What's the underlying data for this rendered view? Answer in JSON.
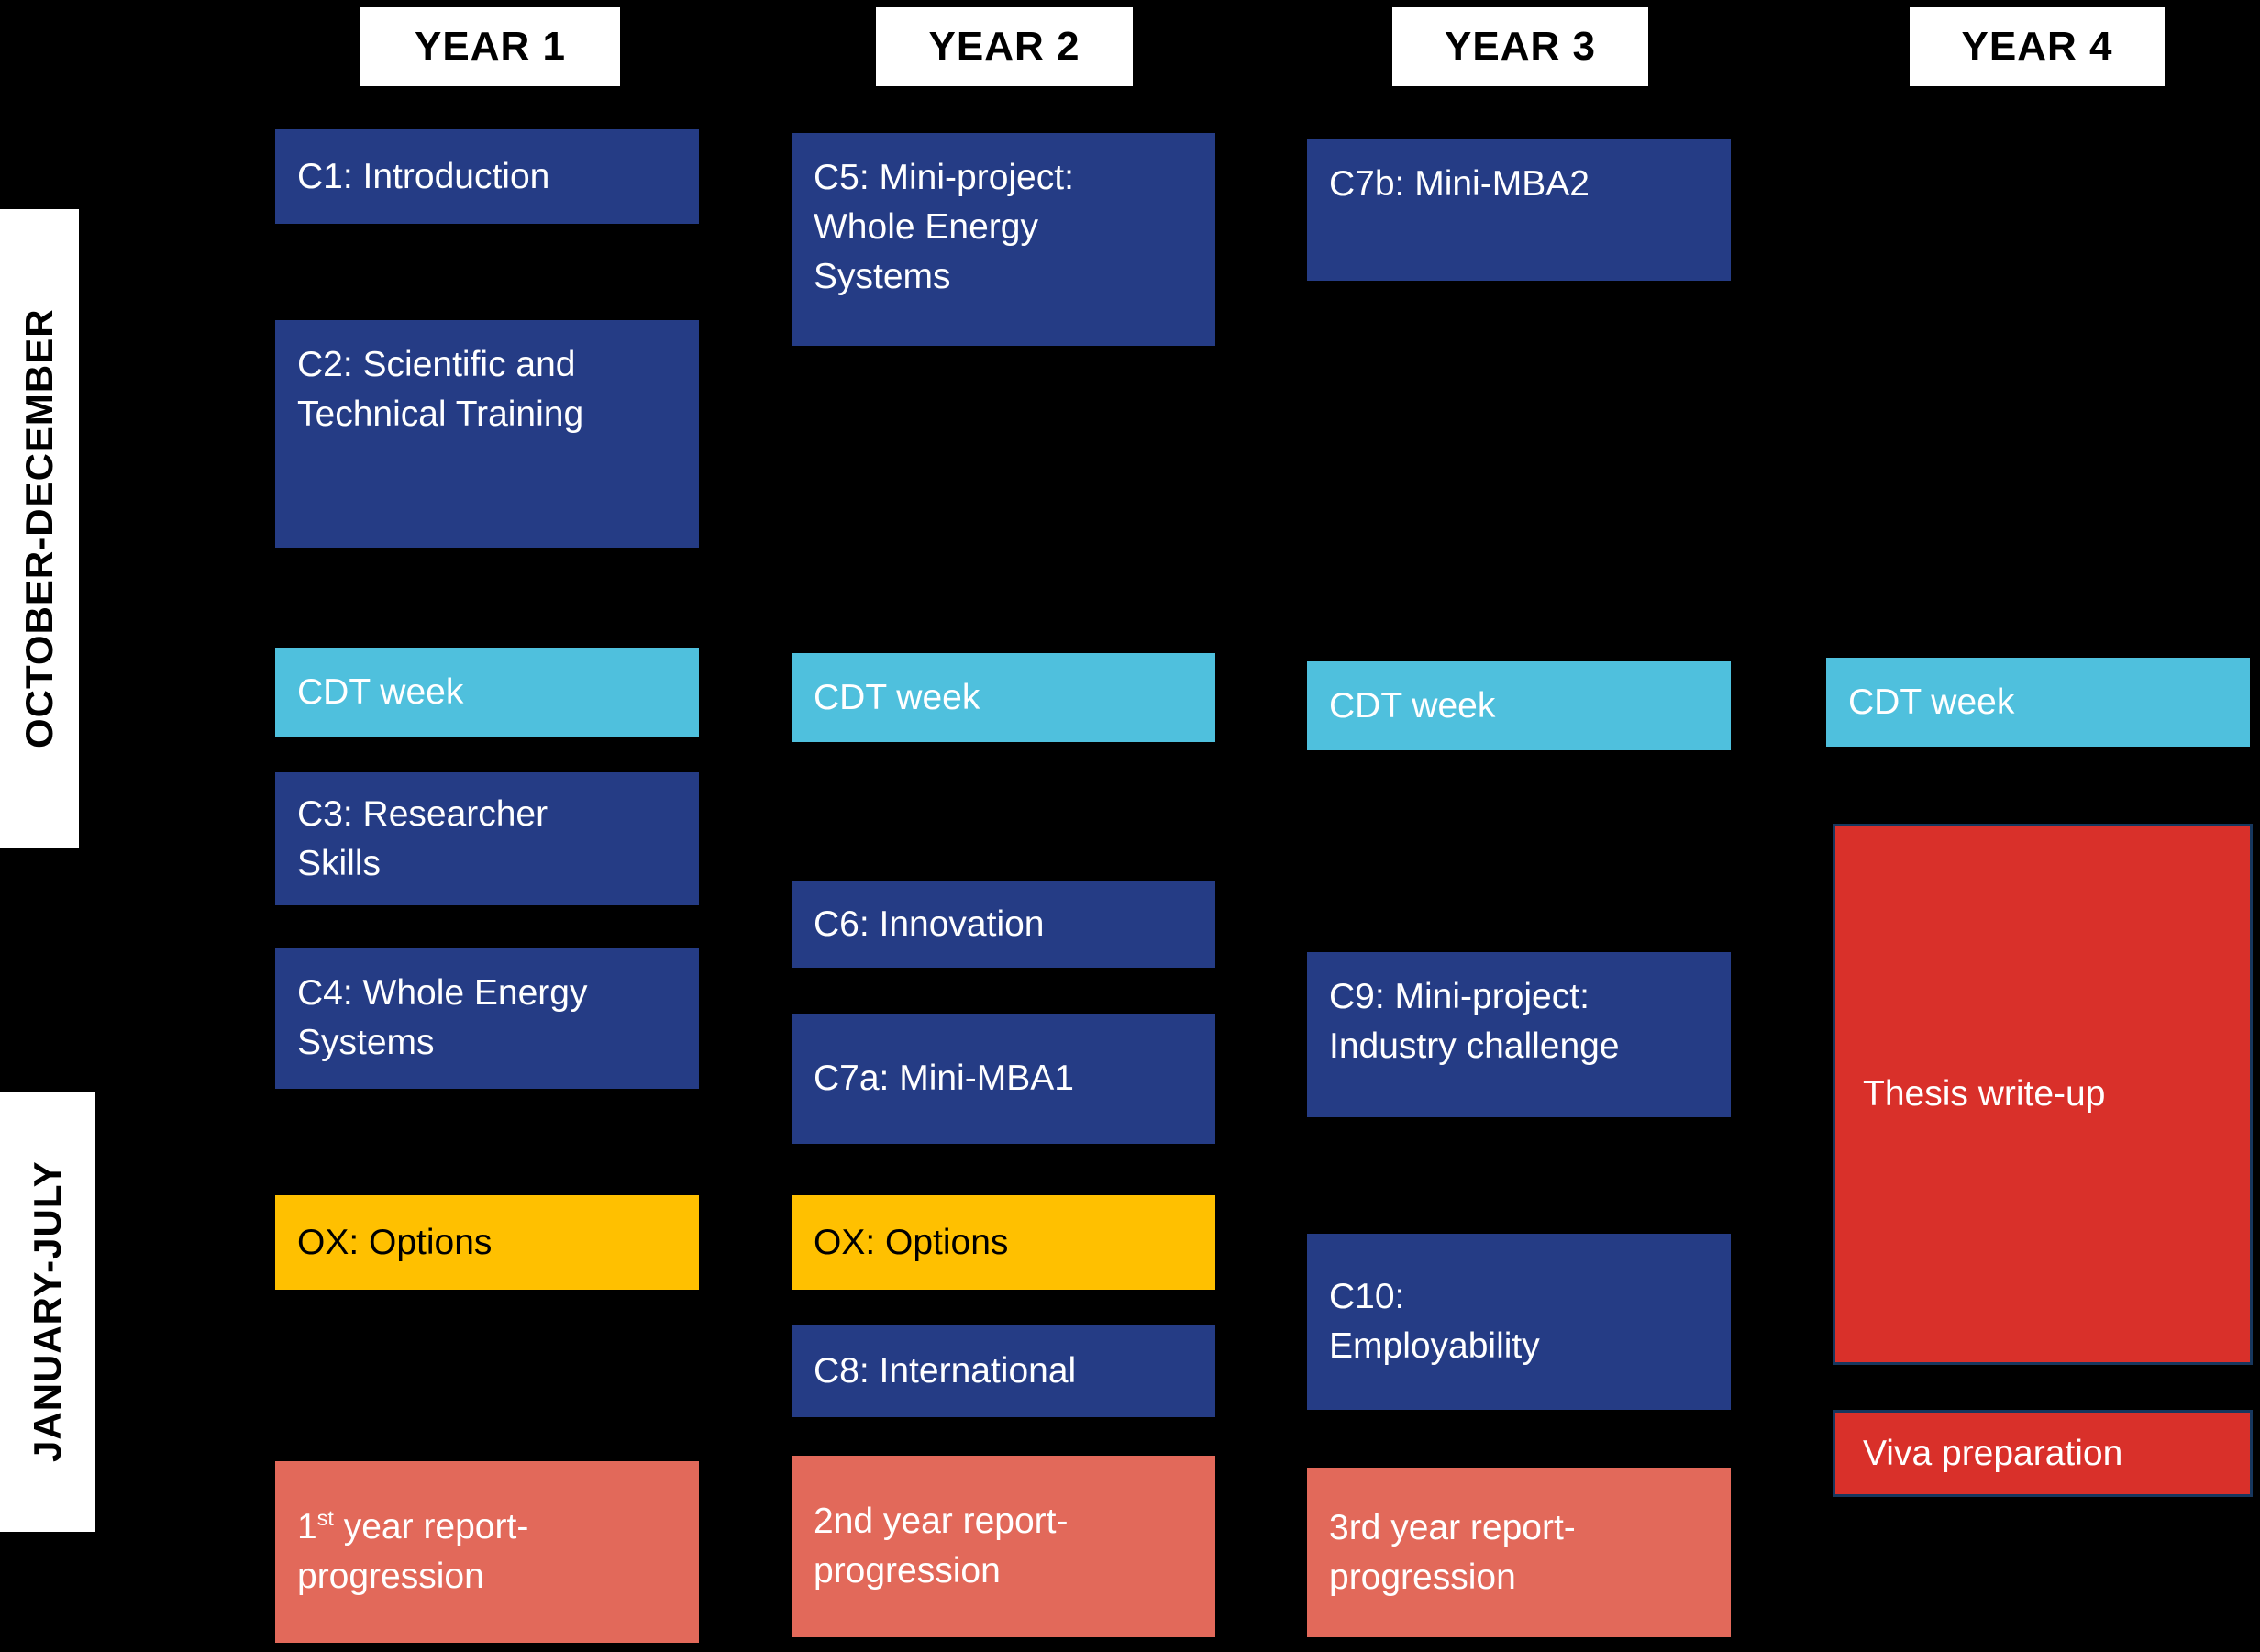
{
  "headers": {
    "year1": "YEAR 1",
    "year2": "YEAR 2",
    "year3": "YEAR 3",
    "year4": "YEAR 4"
  },
  "sidebar": {
    "oct_dec": "OCTOBER-DECEMBER",
    "jan_jul": "JANUARY-JULY"
  },
  "columns": {
    "year1": {
      "c1": "C1: Introduction",
      "c2_line1": "C2: Scientific and",
      "c2_line2": "Technical Training",
      "cdt": "CDT week",
      "c3_line1": "C3: Researcher",
      "c3_line2": "Skills",
      "c4_line1": "C4: Whole Energy",
      "c4_line2": "Systems",
      "ox": "OX: Options",
      "report": {
        "num": "1",
        "sup": "st",
        "rest": " year report-",
        "line2": "progression"
      }
    },
    "year2": {
      "c5_line1": "C5: Mini-project:",
      "c5_line2": "Whole Energy",
      "c5_line3": "Systems",
      "cdt": "CDT week",
      "c6": "C6: Innovation",
      "c7a": "C7a: Mini-MBA1",
      "ox": "OX: Options",
      "c8": "C8: International",
      "report": {
        "line1": "2nd year report-",
        "line2": "progression"
      }
    },
    "year3": {
      "c7b": "C7b: Mini-MBA2",
      "cdt": "CDT week",
      "c9_line1": "C9: Mini-project:",
      "c9_line2": "Industry challenge",
      "c10_line1": "C10:",
      "c10_line2": "Employability",
      "report": {
        "line1": "3rd year report-",
        "line2": "progression"
      }
    },
    "year4": {
      "cdt": "CDT week",
      "thesis": "Thesis write-up",
      "viva": "Viva preparation"
    }
  },
  "colors": {
    "background": "#000000",
    "course_blue": "#253c85",
    "cdt_cyan": "#4fc0dd",
    "options_gold": "#ffc000",
    "report_salmon": "#e2695a",
    "thesis_red": "#d9302a",
    "thesis_border_navy": "#17375e",
    "header_bg": "#ffffff",
    "text_light": "#ffffff",
    "text_dark": "#000000"
  }
}
